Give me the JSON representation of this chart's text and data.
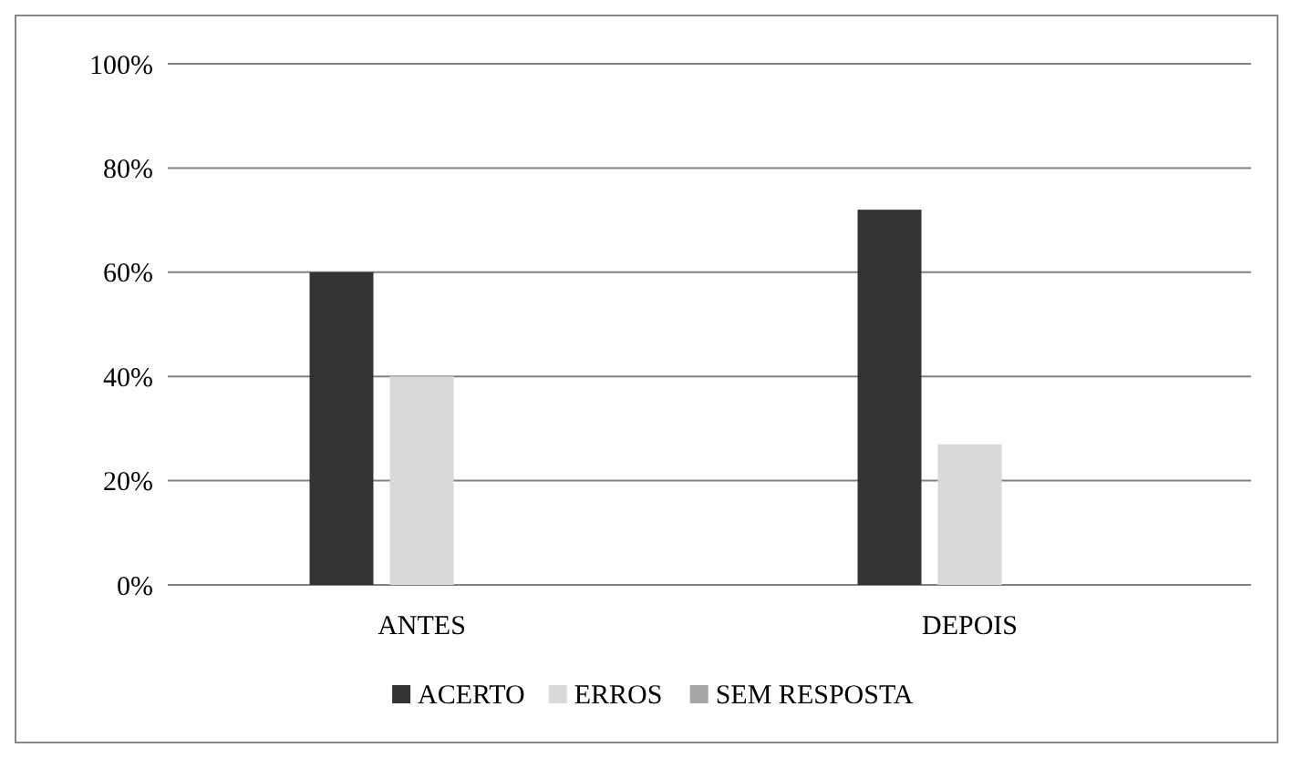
{
  "chart_data": {
    "type": "bar",
    "categories": [
      "ANTES",
      "DEPOIS"
    ],
    "series": [
      {
        "name": "ACERTO",
        "color": "#333333",
        "values": [
          60,
          72
        ]
      },
      {
        "name": "ERROS",
        "color": "#d9d9d9",
        "values": [
          40,
          27
        ]
      },
      {
        "name": "SEM RESPOSTA",
        "color": "#a6a6a6",
        "values": [
          0,
          0
        ]
      }
    ],
    "ylim": [
      0,
      100
    ],
    "yticks": [
      {
        "value": 0,
        "label": "0%"
      },
      {
        "value": 20,
        "label": "20%"
      },
      {
        "value": 40,
        "label": "40%"
      },
      {
        "value": 60,
        "label": "60%"
      },
      {
        "value": 80,
        "label": "80%"
      },
      {
        "value": 100,
        "label": "100%"
      }
    ],
    "grid": "y",
    "legend": "bottom"
  }
}
